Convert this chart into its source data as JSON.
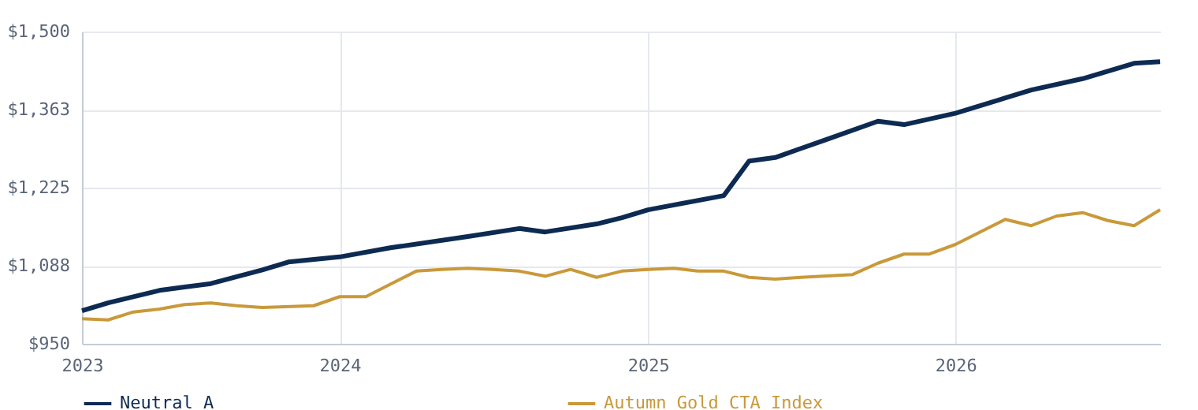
{
  "chart_data": {
    "type": "line",
    "xlim": [
      "2023-03",
      "2026-09"
    ],
    "xticks": [
      {
        "value": "2023-03",
        "label": "2023"
      },
      {
        "value": "2024",
        "label": "2024"
      },
      {
        "value": "2025",
        "label": "2025"
      },
      {
        "value": "2026",
        "label": "2026"
      }
    ],
    "ylim": [
      950,
      1500
    ],
    "yticks": [
      {
        "value": 950,
        "label": "$950"
      },
      {
        "value": 1087.5,
        "label": "$1,088"
      },
      {
        "value": 1225,
        "label": "$1,225"
      },
      {
        "value": 1362.5,
        "label": "$1,363"
      },
      {
        "value": 1500,
        "label": "$1,500"
      }
    ],
    "grid": true,
    "legend": "bottom",
    "series": [
      {
        "name": "Neutral A",
        "color": "#0d2b52",
        "x": [
          "2023-03",
          "2023-04",
          "2023-06",
          "2023-07",
          "2023-08",
          "2023-10",
          "2023-11",
          "2024-01",
          "2024-03",
          "2024-06",
          "2024-08",
          "2024-09",
          "2024-11",
          "2024-12",
          "2025-01",
          "2025-04",
          "2025-05",
          "2025-06",
          "2025-08",
          "2025-10",
          "2025-11",
          "2026-01",
          "2026-04",
          "2026-06",
          "2026-08",
          "2026-09"
        ],
        "values": [
          1008,
          1022,
          1044,
          1050,
          1056,
          1080,
          1094,
          1103,
          1119,
          1139,
          1153,
          1147,
          1161,
          1172,
          1186,
          1211,
          1272,
          1278,
          1310,
          1342,
          1336,
          1356,
          1397,
          1417,
          1444,
          1447
        ]
      },
      {
        "name": "Autumn Gold CTA Index",
        "color": "#c9993a",
        "x": [
          "2023-03",
          "2023-04",
          "2023-05",
          "2023-06",
          "2023-07",
          "2023-08",
          "2023-09",
          "2023-10",
          "2023-12",
          "2024-01",
          "2024-02",
          "2024-04",
          "2024-05",
          "2024-06",
          "2024-07",
          "2024-08",
          "2024-09",
          "2024-10",
          "2024-11",
          "2024-12",
          "2025-01",
          "2025-02",
          "2025-03",
          "2025-04",
          "2025-05",
          "2025-06",
          "2025-07",
          "2025-09",
          "2025-10",
          "2025-11",
          "2025-12",
          "2026-01",
          "2026-03",
          "2026-04",
          "2026-05",
          "2026-06",
          "2026-07",
          "2026-08",
          "2026-09"
        ],
        "values": [
          994,
          992,
          1006,
          1011,
          1019,
          1022,
          1017,
          1014,
          1017,
          1033,
          1033,
          1078,
          1081,
          1083,
          1081,
          1078,
          1069,
          1081,
          1067,
          1078,
          1081,
          1083,
          1078,
          1078,
          1067,
          1064,
          1067,
          1072,
          1092,
          1108,
          1108,
          1125,
          1169,
          1158,
          1175,
          1181,
          1167,
          1158,
          1186
        ]
      }
    ]
  }
}
